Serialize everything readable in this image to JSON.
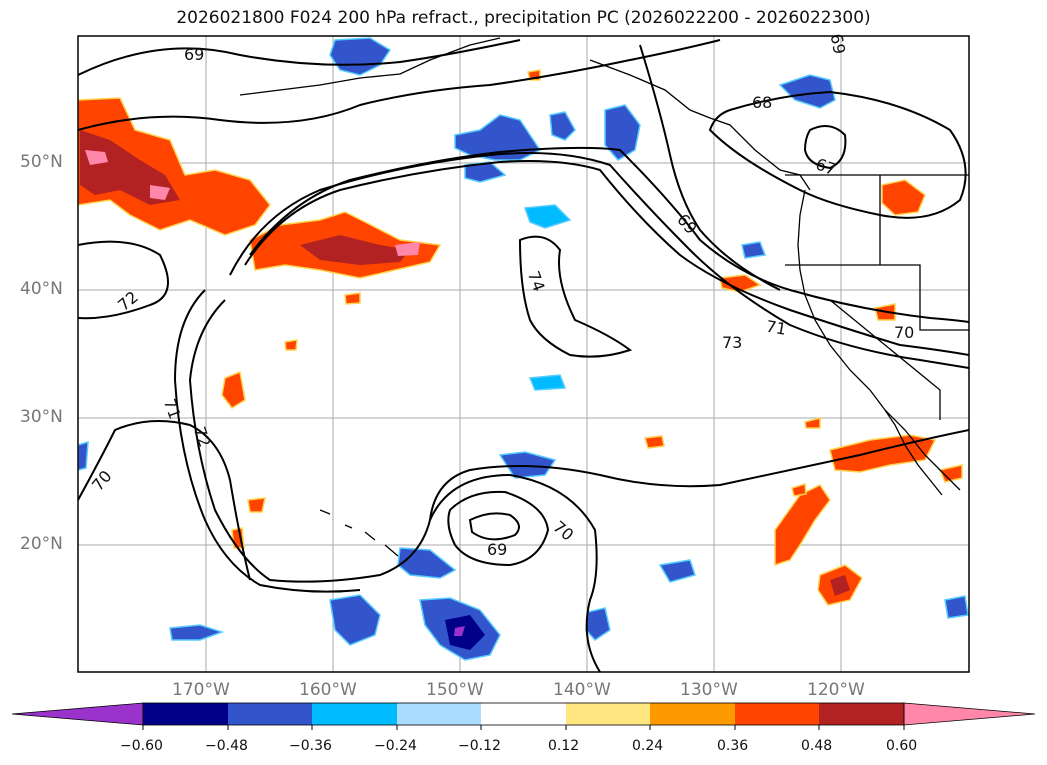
{
  "title": "2026021800 F024 200 hPa refract., precipitation PC (2026022200 - 2026022300)",
  "map": {
    "lat_labels": [
      "50°N",
      "40°N",
      "30°N",
      "20°N"
    ],
    "lon_labels": [
      "170°W",
      "160°W",
      "150°W",
      "140°W",
      "130°W",
      "120°W"
    ],
    "contour_labels": [
      "69",
      "69",
      "68",
      "67",
      "69",
      "72",
      "74",
      "71",
      "73",
      "70",
      "71",
      "72",
      "70",
      "70",
      "69"
    ],
    "colors": {
      "contour": "#000000",
      "grid": "#aaaaaa",
      "coast": "#000000"
    }
  },
  "colorbar": {
    "ticks": [
      "−0.60",
      "−0.48",
      "−0.36",
      "−0.24",
      "−0.12",
      "0.12",
      "0.24",
      "0.36",
      "0.48",
      "0.60"
    ],
    "colors": [
      "#9933cc",
      "#000088",
      "#3355cc",
      "#00bbff",
      "#aaddff",
      "#ffffff",
      "#ffe680",
      "#ff9900",
      "#ff4400",
      "#b22222",
      "#ff88aa"
    ]
  }
}
